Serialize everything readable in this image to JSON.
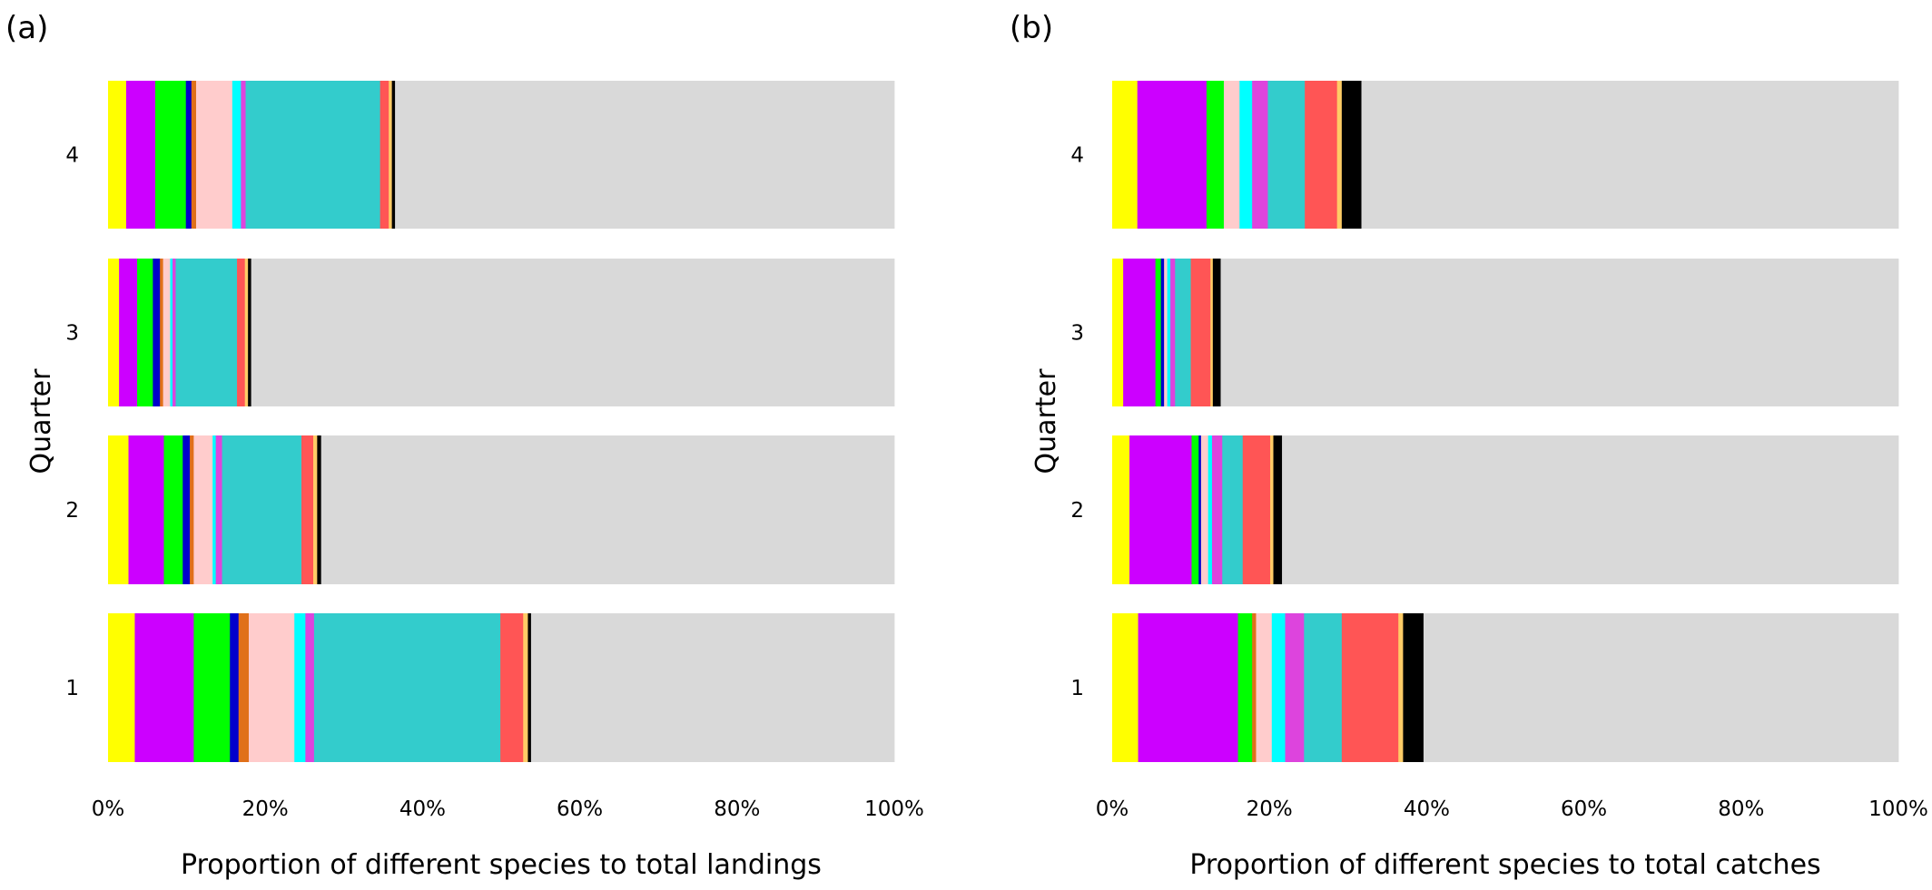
{
  "chart_data": [
    {
      "type": "bar",
      "orientation": "horizontal",
      "stacked": true,
      "panel_label": "(a)",
      "xlabel": "Proportion of different species to total landings",
      "ylabel": "Quarter",
      "categories": [
        "1",
        "2",
        "3",
        "4"
      ],
      "xlim": [
        0,
        100
      ],
      "xticks": [
        "0%",
        "20%",
        "40%",
        "60%",
        "80%",
        "100%"
      ],
      "grid": false,
      "legend": "none",
      "segments": {
        "4": [
          {
            "color": "#FFFF00",
            "value": 2.3
          },
          {
            "color": "#CC00FF",
            "value": 3.7
          },
          {
            "color": "#00FF00",
            "value": 3.9
          },
          {
            "color": "#0000CC",
            "value": 0.7
          },
          {
            "color": "#E0701A",
            "value": 0.6
          },
          {
            "color": "#FFCCCC",
            "value": 4.6
          },
          {
            "color": "#00FFFF",
            "value": 1.1
          },
          {
            "color": "#DD44DD",
            "value": 0.6
          },
          {
            "color": "#33CCCC",
            "value": 17.1
          },
          {
            "color": "#FF5555",
            "value": 1.1
          },
          {
            "color": "#FFCC66",
            "value": 0.4
          },
          {
            "color": "#000000",
            "value": 0.4
          },
          {
            "color": "#D9D9D9",
            "value": 63.5
          }
        ],
        "3": [
          {
            "color": "#FFFF00",
            "value": 1.4
          },
          {
            "color": "#CC00FF",
            "value": 2.3
          },
          {
            "color": "#00FF00",
            "value": 2.0
          },
          {
            "color": "#0000CC",
            "value": 0.9
          },
          {
            "color": "#E0701A",
            "value": 0.4
          },
          {
            "color": "#FFCCCC",
            "value": 0.9
          },
          {
            "color": "#00FFFF",
            "value": 0.3
          },
          {
            "color": "#DD44DD",
            "value": 0.4
          },
          {
            "color": "#33CCCC",
            "value": 7.8
          },
          {
            "color": "#FF5555",
            "value": 1.0
          },
          {
            "color": "#FFCC66",
            "value": 0.4
          },
          {
            "color": "#000000",
            "value": 0.4
          },
          {
            "color": "#D9D9D9",
            "value": 81.8
          }
        ],
        "2": [
          {
            "color": "#FFFF00",
            "value": 2.6
          },
          {
            "color": "#CC00FF",
            "value": 4.5
          },
          {
            "color": "#00FF00",
            "value": 2.4
          },
          {
            "color": "#0000CC",
            "value": 0.9
          },
          {
            "color": "#E0701A",
            "value": 0.5
          },
          {
            "color": "#FFCCCC",
            "value": 2.4
          },
          {
            "color": "#00FFFF",
            "value": 0.4
          },
          {
            "color": "#DD44DD",
            "value": 0.8
          },
          {
            "color": "#33CCCC",
            "value": 10.1
          },
          {
            "color": "#FF5555",
            "value": 1.5
          },
          {
            "color": "#FFCC66",
            "value": 0.5
          },
          {
            "color": "#000000",
            "value": 0.5
          },
          {
            "color": "#D9D9D9",
            "value": 72.9
          }
        ],
        "1": [
          {
            "color": "#FFFF00",
            "value": 3.4
          },
          {
            "color": "#CC00FF",
            "value": 7.5
          },
          {
            "color": "#00FF00",
            "value": 4.6
          },
          {
            "color": "#0000CC",
            "value": 1.1
          },
          {
            "color": "#E0701A",
            "value": 1.3
          },
          {
            "color": "#FFCCCC",
            "value": 5.8
          },
          {
            "color": "#00FFFF",
            "value": 1.4
          },
          {
            "color": "#DD44DD",
            "value": 1.1
          },
          {
            "color": "#33CCCC",
            "value": 23.7
          },
          {
            "color": "#FF5555",
            "value": 2.9
          },
          {
            "color": "#FFCC66",
            "value": 0.6
          },
          {
            "color": "#000000",
            "value": 0.4
          },
          {
            "color": "#D9D9D9",
            "value": 46.2
          }
        ]
      }
    },
    {
      "type": "bar",
      "orientation": "horizontal",
      "stacked": true,
      "panel_label": "(b)",
      "xlabel": "Proportion of different species to total catches",
      "ylabel": "Quarter",
      "categories": [
        "1",
        "2",
        "3",
        "4"
      ],
      "xlim": [
        0,
        100
      ],
      "xticks": [
        "0%",
        "20%",
        "40%",
        "60%",
        "80%",
        "100%"
      ],
      "grid": false,
      "legend": "none",
      "segments": {
        "4": [
          {
            "color": "#FFFF00",
            "value": 3.2
          },
          {
            "color": "#CC00FF",
            "value": 8.8
          },
          {
            "color": "#00FF00",
            "value": 2.2
          },
          {
            "color": "#0000CC",
            "value": 0.0
          },
          {
            "color": "#E0701A",
            "value": 0.0
          },
          {
            "color": "#FFCCCC",
            "value": 2.0
          },
          {
            "color": "#00FFFF",
            "value": 1.6
          },
          {
            "color": "#DD44DD",
            "value": 2.0
          },
          {
            "color": "#33CCCC",
            "value": 4.7
          },
          {
            "color": "#FF5555",
            "value": 4.1
          },
          {
            "color": "#FFCC66",
            "value": 0.6
          },
          {
            "color": "#000000",
            "value": 2.5
          },
          {
            "color": "#D9D9D9",
            "value": 68.3
          }
        ],
        "3": [
          {
            "color": "#FFFF00",
            "value": 1.4
          },
          {
            "color": "#CC00FF",
            "value": 4.1
          },
          {
            "color": "#00FF00",
            "value": 0.7
          },
          {
            "color": "#0000CC",
            "value": 0.4
          },
          {
            "color": "#E0701A",
            "value": 0.0
          },
          {
            "color": "#FFCCCC",
            "value": 0.4
          },
          {
            "color": "#00FFFF",
            "value": 0.4
          },
          {
            "color": "#DD44DD",
            "value": 0.6
          },
          {
            "color": "#33CCCC",
            "value": 2.0
          },
          {
            "color": "#FF5555",
            "value": 2.5
          },
          {
            "color": "#FFCC66",
            "value": 0.3
          },
          {
            "color": "#000000",
            "value": 1.0
          },
          {
            "color": "#D9D9D9",
            "value": 86.2
          }
        ],
        "2": [
          {
            "color": "#FFFF00",
            "value": 2.2
          },
          {
            "color": "#CC00FF",
            "value": 7.9
          },
          {
            "color": "#00FF00",
            "value": 0.9
          },
          {
            "color": "#0000CC",
            "value": 0.3
          },
          {
            "color": "#E0701A",
            "value": 0.0
          },
          {
            "color": "#FFCCCC",
            "value": 0.9
          },
          {
            "color": "#00FFFF",
            "value": 0.5
          },
          {
            "color": "#DD44DD",
            "value": 1.3
          },
          {
            "color": "#33CCCC",
            "value": 2.6
          },
          {
            "color": "#FF5555",
            "value": 3.5
          },
          {
            "color": "#FFCC66",
            "value": 0.4
          },
          {
            "color": "#000000",
            "value": 1.1
          },
          {
            "color": "#D9D9D9",
            "value": 78.4
          }
        ],
        "1": [
          {
            "color": "#FFFF00",
            "value": 3.3
          },
          {
            "color": "#CC00FF",
            "value": 12.7
          },
          {
            "color": "#00FF00",
            "value": 1.8
          },
          {
            "color": "#0000CC",
            "value": 0.0
          },
          {
            "color": "#E0701A",
            "value": 0.5
          },
          {
            "color": "#FFCCCC",
            "value": 2.0
          },
          {
            "color": "#00FFFF",
            "value": 1.7
          },
          {
            "color": "#DD44DD",
            "value": 2.4
          },
          {
            "color": "#33CCCC",
            "value": 4.8
          },
          {
            "color": "#FF5555",
            "value": 7.2
          },
          {
            "color": "#FFCC66",
            "value": 0.6
          },
          {
            "color": "#000000",
            "value": 2.6
          },
          {
            "color": "#D9D9D9",
            "value": 60.4
          }
        ]
      }
    }
  ]
}
